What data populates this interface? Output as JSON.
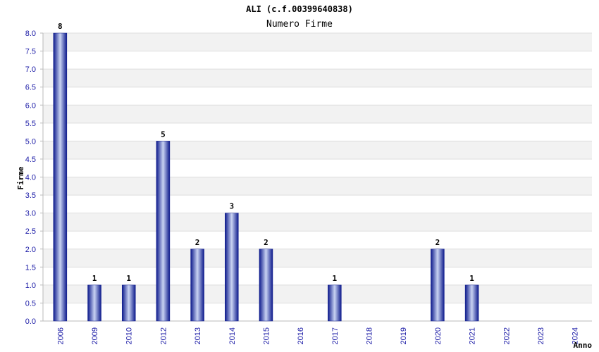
{
  "chart_data": {
    "type": "bar",
    "title": "ALI (c.f.00399640838)",
    "subtitle": "Numero Firme",
    "xlabel": "Anno",
    "ylabel": "Firme",
    "categories": [
      "2006",
      "2009",
      "2010",
      "2012",
      "2013",
      "2014",
      "2015",
      "2016",
      "2017",
      "2018",
      "2019",
      "2020",
      "2021",
      "2022",
      "2023",
      "2024"
    ],
    "values": [
      8,
      1,
      1,
      5,
      2,
      3,
      2,
      0,
      1,
      0,
      0,
      2,
      1,
      0,
      0,
      0
    ],
    "data_labels": [
      "8",
      "1",
      "1",
      "5",
      "2",
      "3",
      "2",
      "",
      "1",
      "",
      "",
      "2",
      "1",
      "",
      "",
      ""
    ],
    "ylim": [
      0,
      8
    ],
    "yticks": [
      "0.0",
      "0.5",
      "1.0",
      "1.5",
      "2.0",
      "2.5",
      "3.0",
      "3.5",
      "4.0",
      "4.5",
      "5.0",
      "5.5",
      "6.0",
      "6.5",
      "7.0",
      "7.5",
      "8.0"
    ],
    "grid": true,
    "colors": {
      "bar_dark": "#0d1a8c",
      "bar_light": "#c9d3f2",
      "band": "#f2f2f2",
      "gridline": "#dddddd",
      "tick_text": "#1a1aa6"
    }
  }
}
